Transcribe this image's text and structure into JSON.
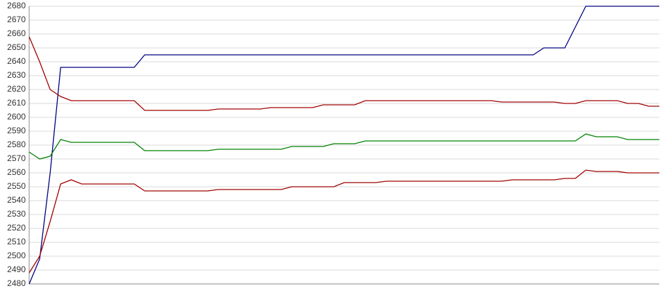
{
  "chart_data": {
    "type": "line",
    "categories": [
      null,
      null,
      null,
      null,
      null,
      null,
      null,
      null,
      null,
      null,
      null,
      null,
      null,
      null,
      null,
      null,
      null,
      null,
      null,
      null,
      null,
      null,
      null,
      null,
      null,
      null,
      null,
      null,
      null,
      null,
      null,
      null,
      null,
      null,
      null,
      null,
      null,
      null,
      null,
      null,
      null,
      null,
      null,
      null,
      null,
      null,
      null,
      null,
      null,
      null,
      null,
      null,
      null,
      null,
      null,
      null,
      null,
      null,
      null,
      null,
      null
    ],
    "series": [
      {
        "color": "#000080",
        "values": [
          2480,
          2498,
          2560,
          2636,
          2636,
          2636,
          2636,
          2636,
          2636,
          2636,
          2636,
          2645,
          2645,
          2645,
          2645,
          2645,
          2645,
          2645,
          2645,
          2645,
          2645,
          2645,
          2645,
          2645,
          2645,
          2645,
          2645,
          2645,
          2645,
          2645,
          2645,
          2645,
          2645,
          2645,
          2645,
          2645,
          2645,
          2645,
          2645,
          2645,
          2645,
          2645,
          2645,
          2645,
          2645,
          2645,
          2645,
          2645,
          2645,
          2650,
          2650,
          2650,
          2665,
          2680,
          2680,
          2680,
          2680,
          2680,
          2680,
          2680,
          2680
        ]
      },
      {
        "color": "#a00000",
        "values": [
          2658,
          2640,
          2620,
          2615,
          2612,
          2612,
          2612,
          2612,
          2612,
          2612,
          2612,
          2605,
          2605,
          2605,
          2605,
          2605,
          2605,
          2605,
          2606,
          2606,
          2606,
          2606,
          2606,
          2607,
          2607,
          2607,
          2607,
          2607,
          2609,
          2609,
          2609,
          2609,
          2612,
          2612,
          2612,
          2612,
          2612,
          2612,
          2612,
          2612,
          2612,
          2612,
          2612,
          2612,
          2612,
          2611,
          2611,
          2611,
          2611,
          2611,
          2611,
          2610,
          2610,
          2612,
          2612,
          2612,
          2612,
          2610,
          2610,
          2608,
          2608
        ]
      },
      {
        "color": "#008000",
        "values": [
          2575,
          2570,
          2572,
          2584,
          2582,
          2582,
          2582,
          2582,
          2582,
          2582,
          2582,
          2576,
          2576,
          2576,
          2576,
          2576,
          2576,
          2576,
          2577,
          2577,
          2577,
          2577,
          2577,
          2577,
          2577,
          2579,
          2579,
          2579,
          2579,
          2581,
          2581,
          2581,
          2583,
          2583,
          2583,
          2583,
          2583,
          2583,
          2583,
          2583,
          2583,
          2583,
          2583,
          2583,
          2583,
          2583,
          2583,
          2583,
          2583,
          2583,
          2583,
          2583,
          2583,
          2588,
          2586,
          2586,
          2586,
          2584,
          2584,
          2584,
          2584
        ]
      },
      {
        "color": "#a00000",
        "values": [
          2488,
          2500,
          2525,
          2552,
          2555,
          2552,
          2552,
          2552,
          2552,
          2552,
          2552,
          2547,
          2547,
          2547,
          2547,
          2547,
          2547,
          2547,
          2548,
          2548,
          2548,
          2548,
          2548,
          2548,
          2548,
          2550,
          2550,
          2550,
          2550,
          2550,
          2553,
          2553,
          2553,
          2553,
          2554,
          2554,
          2554,
          2554,
          2554,
          2554,
          2554,
          2554,
          2554,
          2554,
          2554,
          2554,
          2555,
          2555,
          2555,
          2555,
          2555,
          2556,
          2556,
          2562,
          2561,
          2561,
          2561,
          2560,
          2560,
          2560,
          2560
        ]
      }
    ],
    "ylim": [
      2480,
      2680
    ],
    "yticks": [
      2480,
      2490,
      2500,
      2510,
      2520,
      2530,
      2540,
      2550,
      2560,
      2570,
      2580,
      2590,
      2600,
      2610,
      2620,
      2630,
      2640,
      2650,
      2660,
      2670,
      2680
    ],
    "grid": true
  }
}
